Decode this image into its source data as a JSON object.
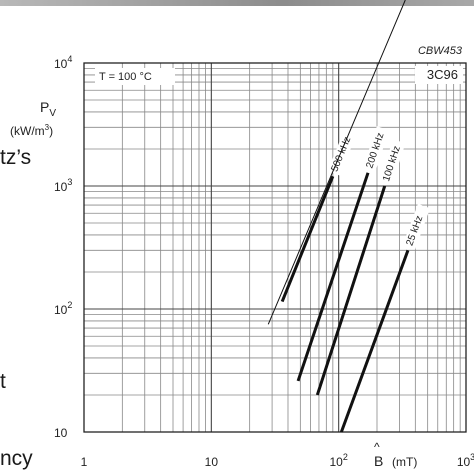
{
  "side_text": {
    "a": "tz’s",
    "b": "t",
    "c": "ncy"
  },
  "chart_data": {
    "type": "line",
    "title": "",
    "code": "CBW453",
    "material": "3C96",
    "condition": "T = 100 °C",
    "ylabel": "P_V (kW/m³)",
    "ylabel_line1": "P",
    "ylabel_sub": "V",
    "ylabel_line2": "(kW/m",
    "ylabel_sup": "3",
    "ylabel_close": ")",
    "xlabel_symbol": "B",
    "xlabel_unit": "(mT)",
    "xscale": "log",
    "yscale": "log",
    "xlim": [
      1,
      1000
    ],
    "ylim": [
      10,
      10000
    ],
    "grid": true,
    "xticks": [
      {
        "value": 1,
        "base": "1",
        "exp": ""
      },
      {
        "value": 10,
        "base": "10",
        "exp": ""
      },
      {
        "value": 100,
        "base": "10",
        "exp": "2"
      },
      {
        "value": 1000,
        "base": "10",
        "exp": "3"
      }
    ],
    "yticks": [
      {
        "value": 10,
        "base": "10",
        "exp": ""
      },
      {
        "value": 100,
        "base": "10",
        "exp": "2"
      },
      {
        "value": 1000,
        "base": "10",
        "exp": "3"
      },
      {
        "value": 10000,
        "base": "10",
        "exp": "4"
      }
    ],
    "series": [
      {
        "name": "500 kHz",
        "x": [
          36,
          90
        ],
        "y": [
          115,
          1200
        ]
      },
      {
        "name": "200 kHz",
        "x": [
          48,
          170
        ],
        "y": [
          26,
          1280
        ]
      },
      {
        "name": "100 kHz",
        "x": [
          68,
          230
        ],
        "y": [
          20,
          1000
        ]
      },
      {
        "name": "25 kHz",
        "x": [
          105,
          350
        ],
        "y": [
          10,
          300
        ]
      }
    ],
    "annotation_line": {
      "x": [
        28,
        700
      ],
      "y": [
        75,
        200000
      ]
    }
  }
}
